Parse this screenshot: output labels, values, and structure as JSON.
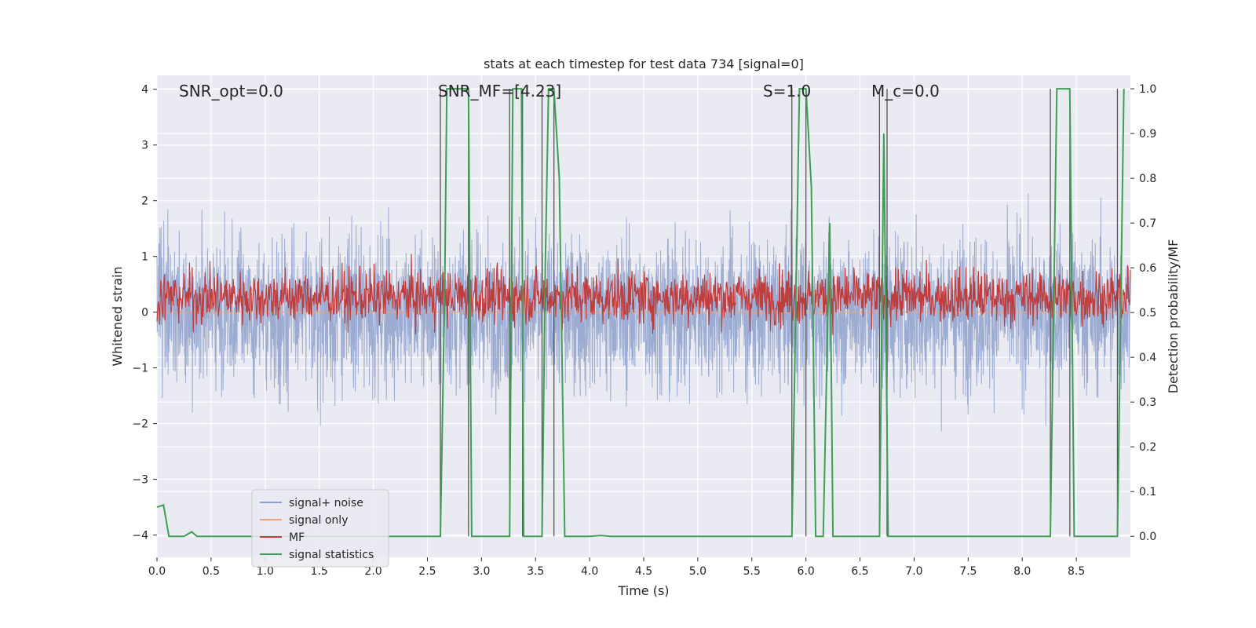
{
  "chart_data": {
    "type": "line",
    "title": "stats at each timestep for test data 734 [signal=0]",
    "xlabel": "Time (s)",
    "ylabel": "Whitened strain",
    "y2label": "Detection probability/MF",
    "xlim": [
      0.0,
      9.0
    ],
    "ylim": [
      -4.4,
      4.25
    ],
    "y2lim": [
      -0.047,
      1.03
    ],
    "x_ticks": [
      "0.0",
      "0.5",
      "1.0",
      "1.5",
      "2.0",
      "2.5",
      "3.0",
      "3.5",
      "4.0",
      "4.5",
      "5.0",
      "5.5",
      "6.0",
      "6.5",
      "7.0",
      "7.5",
      "8.0",
      "8.5"
    ],
    "y_ticks": [
      "4",
      "3",
      "2",
      "1",
      "0",
      "−1",
      "−2",
      "−3",
      "−4"
    ],
    "y2_ticks": [
      "1.0",
      "0.9",
      "0.8",
      "0.7",
      "0.6",
      "0.5",
      "0.4",
      "0.3",
      "0.2",
      "0.1",
      "0.0"
    ],
    "grid": true,
    "legend_position": "lower-left",
    "annotations": [
      "SNR_opt=0.0",
      "SNR_MF=[4.23]",
      "S=1.0",
      "M_c=0.0"
    ],
    "series": [
      {
        "name": "signal+ noise",
        "color": "#8da0cb",
        "axis": "left",
        "kind": "noise",
        "amplitude_sd": 0.9
      },
      {
        "name": "signal only",
        "color": "#e8a27c",
        "axis": "left",
        "kind": "flat",
        "values": [
          0,
          0
        ]
      },
      {
        "name": "MF",
        "color": "#c03d3e",
        "axis": "right",
        "kind": "noise",
        "mean": 0.535,
        "spread": 0.03
      },
      {
        "name": "signal statistics",
        "color": "#3f9e56",
        "axis": "right",
        "x": [
          0.0,
          0.06,
          0.11,
          0.25,
          0.32,
          0.37,
          0.42,
          0.5,
          1.0,
          2.0,
          2.62,
          2.66,
          2.68,
          2.85,
          2.88,
          2.91,
          3.0,
          3.26,
          3.29,
          3.31,
          3.37,
          3.39,
          3.42,
          3.56,
          3.59,
          3.62,
          3.67,
          3.72,
          3.77,
          3.82,
          3.9,
          4.0,
          4.1,
          4.2,
          5.0,
          5.5,
          5.87,
          5.94,
          6.0,
          6.05,
          6.09,
          6.16,
          6.22,
          6.25,
          6.28,
          6.32,
          6.5,
          6.68,
          6.72,
          6.76,
          6.8,
          7.0,
          8.0,
          8.26,
          8.32,
          8.44,
          8.48,
          8.55,
          8.7,
          8.88,
          8.94
        ],
        "values": [
          0.065,
          0.07,
          0.0,
          0.0,
          0.01,
          0.0,
          0.0,
          0.0,
          0.0,
          0.0,
          0.0,
          0.55,
          1.0,
          1.0,
          1.0,
          0.0,
          0.0,
          0.0,
          1.0,
          1.0,
          1.0,
          0.0,
          0.0,
          0.0,
          0.6,
          1.0,
          1.0,
          0.8,
          0.0,
          0.0,
          0.0,
          0.0,
          0.002,
          0.0,
          0.0,
          0.0,
          0.0,
          1.0,
          1.0,
          0.78,
          0.0,
          0.0,
          0.7,
          0.0,
          0.0,
          0.0,
          0.0,
          0.0,
          0.9,
          0.0,
          0.0,
          0.0,
          0.0,
          0.0,
          1.0,
          1.0,
          0.0,
          0.0,
          0.0,
          0.0,
          1.0
        ]
      },
      {
        "name": "",
        "color": "#555555",
        "axis": "right",
        "kind": "vlines",
        "x": [
          2.62,
          2.88,
          3.26,
          3.38,
          3.56,
          3.67,
          5.87,
          6.0,
          6.68,
          6.75,
          8.26,
          8.44,
          8.88
        ]
      }
    ]
  }
}
